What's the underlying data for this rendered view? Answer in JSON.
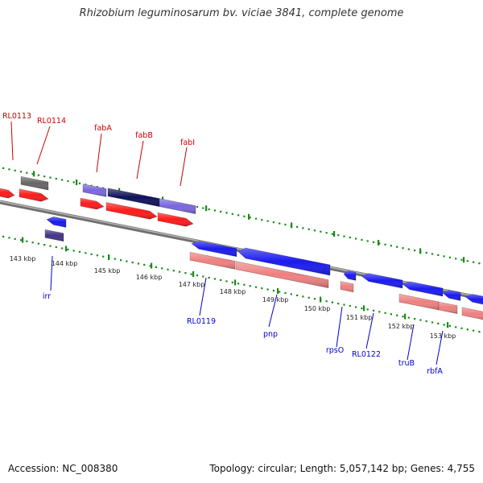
{
  "title": "Rhizobium leguminosarum bv. viciae 3841, complete genome",
  "footer": {
    "accession": "Accession: NC_008380",
    "summary": "Topology: circular; Length: 5,057,142 bp; Genes: 4,755"
  },
  "colors": {
    "backbone": "#8a8a8a",
    "tick": "#1a8a1a",
    "top_label": "#cc0000",
    "bottom_label": "#0000cc",
    "red_gene": "#ff1a1a",
    "blue_gene": "#1a1aee",
    "pink_gene": "#ee8080",
    "purple_gene": "#7a66dd",
    "dark_purple_gene": "#443388",
    "navy_gene": "#10105a",
    "gray_gene": "#666666"
  },
  "scale": {
    "labels": [
      "143 kbp",
      "144 kbp",
      "145 kbp",
      "146 kbp",
      "147 kbp",
      "148 kbp",
      "149 kbp",
      "150 kbp",
      "151 kbp",
      "152 kbp",
      "153 kbp"
    ]
  },
  "top_labels": [
    "RL0113",
    "RL0114",
    "fabA",
    "fabB",
    "fabI"
  ],
  "bottom_labels": [
    "irr",
    "RL0119",
    "pnp",
    "rpsO",
    "RL0122",
    "truB",
    "rbfA"
  ]
}
